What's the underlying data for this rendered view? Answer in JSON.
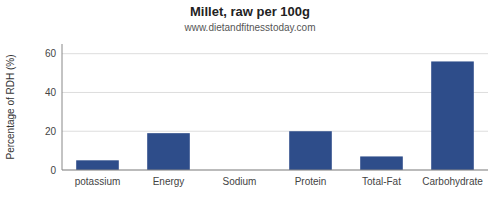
{
  "chart_data": {
    "type": "bar",
    "title": "Millet, raw per 100g",
    "subtitle": "www.dietandfitnesstoday.com",
    "ylabel": "Percentage of RDH (%)",
    "categories": [
      "potassium",
      "Energy",
      "Sodium",
      "Protein",
      "Total-Fat",
      "Carbohydrate"
    ],
    "values": [
      5,
      19,
      0,
      20,
      7,
      56
    ],
    "color": "#2e4d8a",
    "ylim": [
      0,
      65
    ],
    "yticks": [
      0,
      20,
      40,
      60
    ],
    "grid": true
  }
}
